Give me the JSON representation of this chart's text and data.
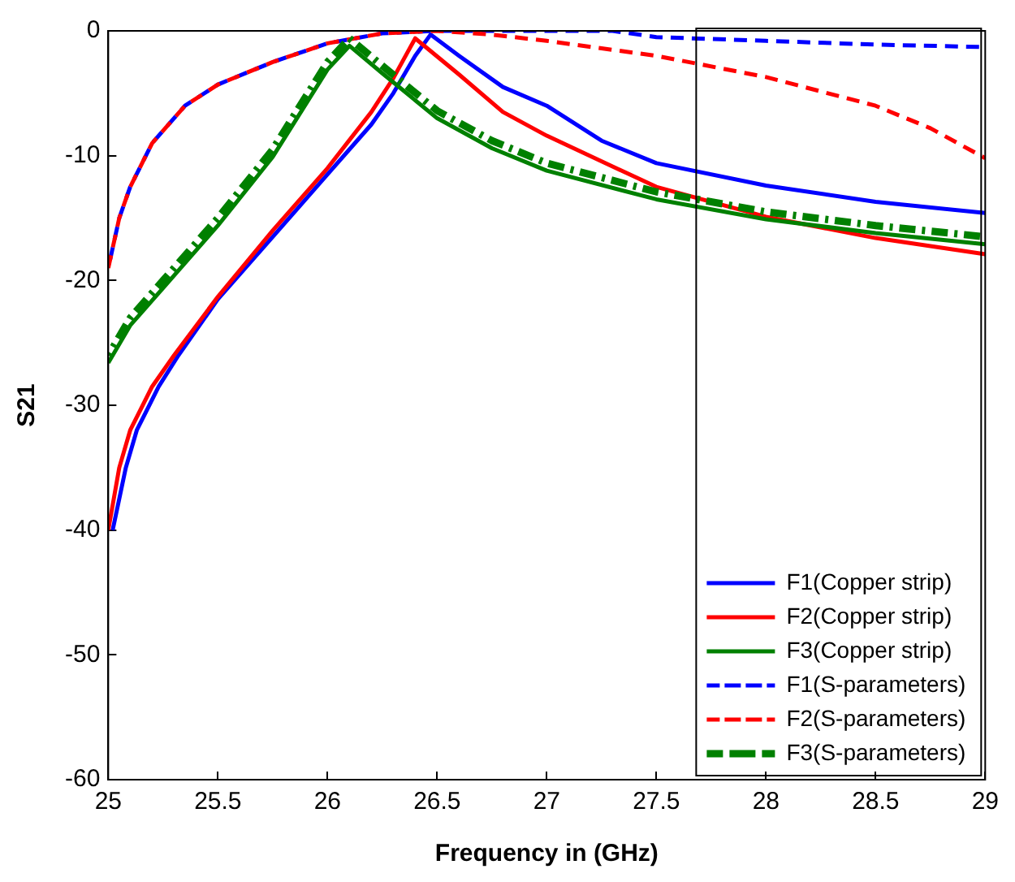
{
  "chart_data": {
    "type": "line",
    "xlabel": "Frequency in (GHz)",
    "ylabel": "S21",
    "xlim": [
      25,
      29
    ],
    "xticks": [
      25,
      25.5,
      26,
      26.5,
      27,
      27.5,
      28,
      28.5,
      29
    ],
    "ylim": [
      -60,
      0
    ],
    "yticks": [
      -60,
      -50,
      -40,
      -30,
      -20,
      -10,
      0
    ],
    "grid": false,
    "legend": "bottom right",
    "marker": "none",
    "series": [
      {
        "name": "F1(Copper strip)",
        "color": "#0000ff",
        "line_style": "solid",
        "x": [
          25.02,
          25.08,
          25.13,
          25.23,
          25.32,
          25.5,
          25.75,
          26,
          26.2,
          26.3,
          26.4,
          26.47,
          26.6,
          26.8,
          27,
          27.25,
          27.5,
          28,
          28.5,
          29
        ],
        "values": [
          -40,
          -35,
          -32,
          -28.5,
          -26,
          -21.5,
          -16.5,
          -11.5,
          -7.5,
          -5,
          -2,
          -0.3,
          -2,
          -4.5,
          -6,
          -8.8,
          -10.6,
          -12.4,
          -13.7,
          -14.6
        ]
      },
      {
        "name": "F2(Copper strip)",
        "color": "#ff0000",
        "line_style": "solid",
        "x": [
          25,
          25.05,
          25.1,
          25.2,
          25.3,
          25.5,
          25.75,
          26,
          26.2,
          26.3,
          26.4,
          26.6,
          26.8,
          27,
          27.5,
          28,
          28.5,
          29
        ],
        "values": [
          -40,
          -35,
          -32,
          -28.5,
          -26,
          -21.3,
          -16,
          -11,
          -6.5,
          -3.8,
          -0.6,
          -3.5,
          -6.5,
          -8.4,
          -12.5,
          -14.9,
          -16.6,
          -17.9
        ]
      },
      {
        "name": "F3(Copper strip)",
        "color": "#008000",
        "line_style": "solid",
        "x": [
          25,
          25.1,
          25.25,
          25.5,
          25.75,
          26,
          26.1,
          26.25,
          26.5,
          26.75,
          27,
          27.5,
          28,
          28.5,
          29
        ],
        "values": [
          -26.6,
          -23.6,
          -20.6,
          -15.6,
          -10.1,
          -3.1,
          -1.2,
          -3.4,
          -7,
          -9.4,
          -11.2,
          -13.5,
          -15.1,
          -16.2,
          -17.1
        ]
      },
      {
        "name": "F1(S-parameters)",
        "color": "#0000ff",
        "line_style": "dashed",
        "x": [
          25,
          25.05,
          25.1,
          25.2,
          25.35,
          25.5,
          25.75,
          26,
          26.25,
          26.5,
          27,
          27.3,
          27.5,
          28,
          28.5,
          29
        ],
        "values": [
          -19,
          -15,
          -12.5,
          -9,
          -6,
          -4.3,
          -2.5,
          -1,
          -0.2,
          0,
          0,
          0,
          -0.5,
          -0.8,
          -1.1,
          -1.3
        ]
      },
      {
        "name": "F2(S-parameters)",
        "color": "#ff0000",
        "line_style": "dashed",
        "x": [
          25,
          25.05,
          25.1,
          25.2,
          25.35,
          25.5,
          25.75,
          26,
          26.25,
          26.5,
          26.75,
          27,
          27.5,
          28,
          28.5,
          28.75,
          29
        ],
        "values": [
          -19,
          -15,
          -12.5,
          -9,
          -6,
          -4.3,
          -2.5,
          -1,
          -0.2,
          0,
          -0.3,
          -0.8,
          -2,
          -3.7,
          -6,
          -7.8,
          -10.2
        ]
      },
      {
        "name": "F3(S-parameters)",
        "color": "#008000",
        "line_style": "dashdot",
        "x": [
          25,
          25.1,
          25.25,
          25.5,
          25.75,
          26,
          26.1,
          26.25,
          26.5,
          26.75,
          27,
          27.5,
          28,
          28.5,
          29
        ],
        "values": [
          -26,
          -23,
          -20,
          -15,
          -9.5,
          -2.5,
          -0.6,
          -2.8,
          -6.4,
          -8.8,
          -10.6,
          -12.9,
          -14.5,
          -15.6,
          -16.5
        ]
      }
    ]
  }
}
